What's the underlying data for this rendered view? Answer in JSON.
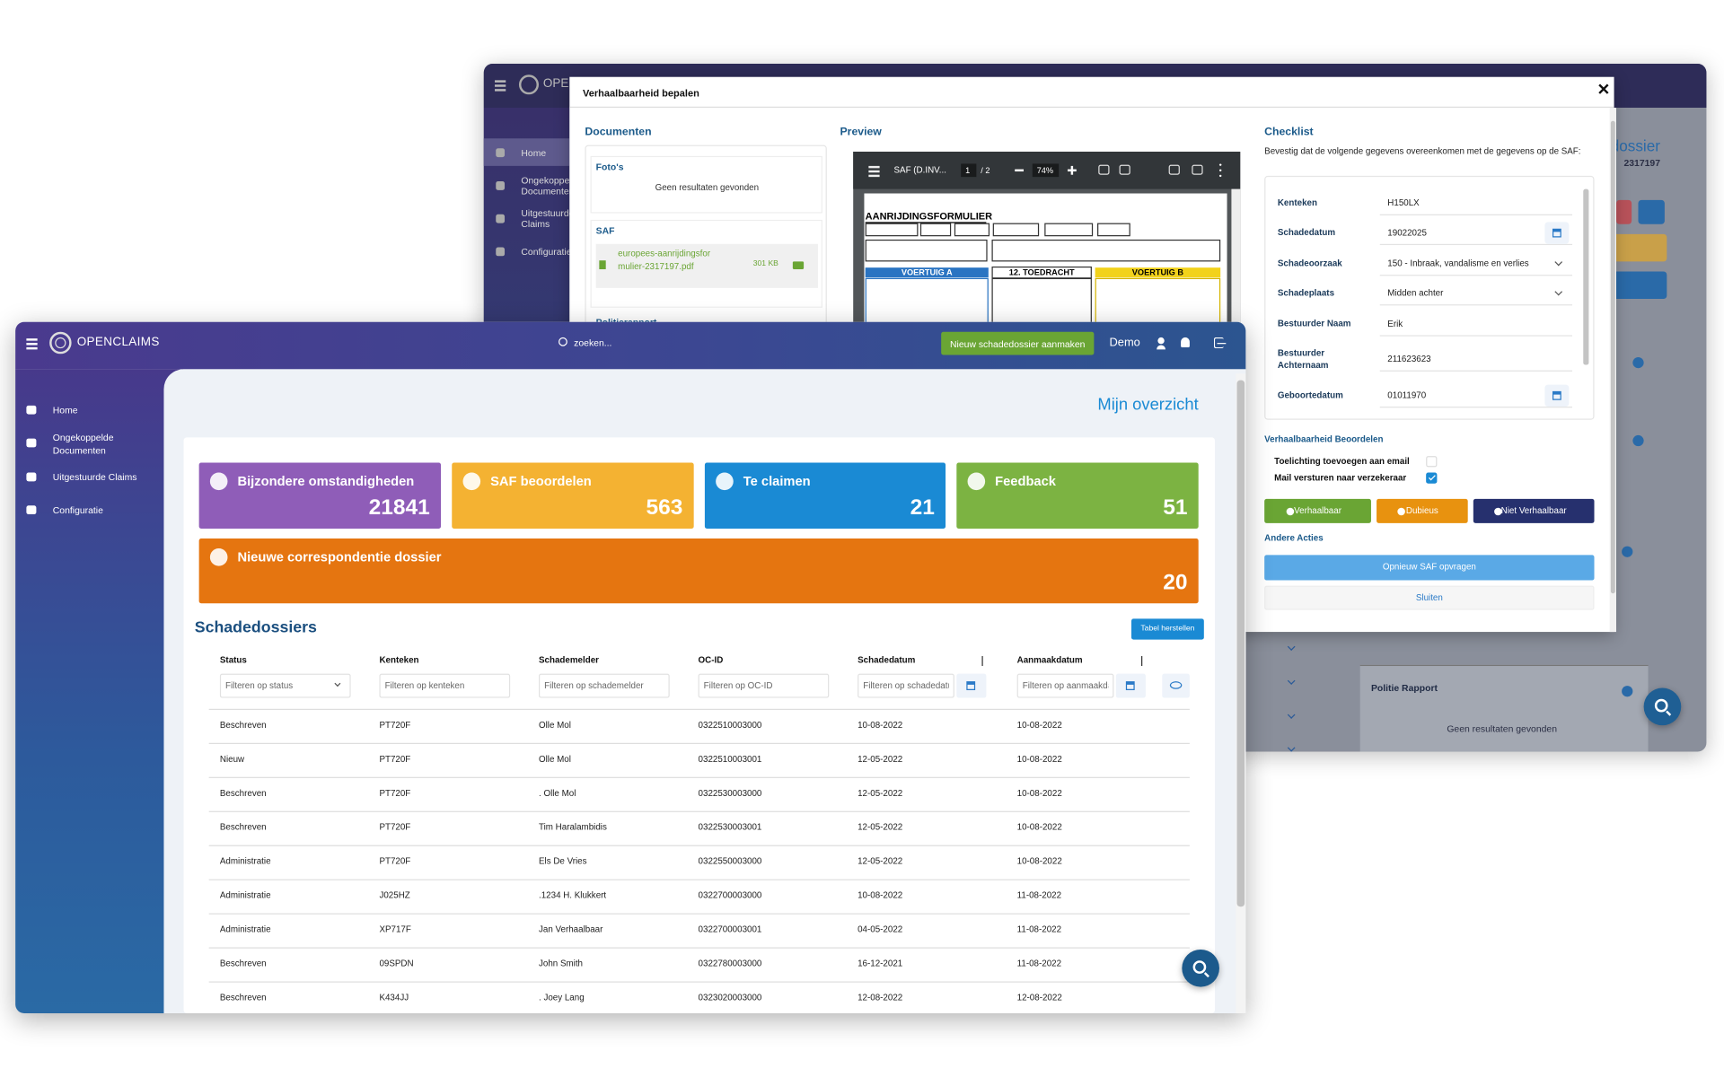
{
  "back_window": {
    "brand": "OPENCLAIMS",
    "nav": [
      "Home",
      "Ongekoppelde Documenten",
      "Uitgestuurde Claims",
      "Configuratie"
    ],
    "page_title": "Schadedossier",
    "dossier_number": "2317197",
    "section_title": "Politie Rapport",
    "empty_text": "Geen resultaten gevonden"
  },
  "modal": {
    "title": "Verhaalbaarheid bepalen",
    "documents": {
      "title": "Documenten",
      "photos_title": "Foto's",
      "photos_empty": "Geen resultaten gevonden",
      "saf_title": "SAF",
      "file_name": "europees-aanrijdingsformulier-2317197.pdf",
      "file_size": "301 KB",
      "police_title": "Politierapport"
    },
    "preview": {
      "title": "Preview",
      "file_label": "SAF (D.INV...",
      "page": "1",
      "page_total": "/ 2",
      "zoom": "74%",
      "form_title": "AANRIJDINGSFORMULIER",
      "vehicle_a": "VOERTUIG A",
      "circumstances": "12. TOEDRACHT",
      "vehicle_b": "VOERTUIG B"
    },
    "checklist": {
      "title": "Checklist",
      "description": "Bevestig dat de volgende gegevens overeenkomen met de gegevens op de SAF:",
      "fields": [
        {
          "label": "Kenteken",
          "value": "H150LX",
          "control": "text"
        },
        {
          "label": "Schadedatum",
          "value": "19022025",
          "control": "date"
        },
        {
          "label": "Schadeoorzaak",
          "value": "150 - Inbraak, vandalisme en verlies",
          "control": "select"
        },
        {
          "label": "Schadeplaats",
          "value": "Midden achter",
          "control": "select"
        },
        {
          "label": "Bestuurder Naam",
          "value": "Erik",
          "control": "text"
        },
        {
          "label": "Bestuurder Achternaam",
          "value": "211623623",
          "control": "text"
        },
        {
          "label": "Geboortedatum",
          "value": "01011970",
          "control": "date"
        }
      ]
    },
    "assessment": {
      "title": "Verhaalbaarheid Beoordelen",
      "options": [
        {
          "label": "Toelichting toevoegen aan email",
          "checked": false
        },
        {
          "label": "Mail versturen naar verzekeraar",
          "checked": true
        }
      ],
      "buttons": [
        {
          "label": "Verhaalbaar",
          "color": "#6aa534"
        },
        {
          "label": "Dubieus",
          "color": "#e8920f"
        },
        {
          "label": "Niet Verhaalbaar",
          "color": "#26306e"
        }
      ]
    },
    "other_actions": {
      "title": "Andere Acties",
      "request_again": "Opnieuw SAF opvragen",
      "close": "Sluiten"
    }
  },
  "front_window": {
    "brand": "OPENCLAIMS",
    "search_placeholder": "zoeken...",
    "new_button": "Nieuw schadedossier aanmaken",
    "user": "Demo",
    "nav": [
      "Home",
      "Ongekoppelde Documenten",
      "Uitgestuurde Claims",
      "Configuratie"
    ],
    "heading": "Mijn overzicht",
    "cards": [
      {
        "title": "Bijzondere omstandigheden",
        "count": 21841,
        "color": "#8f5db8"
      },
      {
        "title": "SAF beoordelen",
        "count": 563,
        "color": "#f4b232"
      },
      {
        "title": "Te claimen",
        "count": 21,
        "color": "#1a8ad4"
      },
      {
        "title": "Feedback",
        "count": 51,
        "color": "#7cb342"
      },
      {
        "title": "Nieuwe correspondentie dossier",
        "count": 20,
        "color": "#e57510"
      }
    ],
    "table": {
      "title": "Schadedossiers",
      "reset_button": "Tabel herstellen",
      "columns": [
        {
          "name": "Status",
          "filter": "Filteren op status",
          "filter_type": "select",
          "sortable": false
        },
        {
          "name": "Kenteken",
          "filter": "Filteren op kenteken",
          "filter_type": "text",
          "sortable": false
        },
        {
          "name": "Schademelder",
          "filter": "Filteren op schademelder",
          "filter_type": "text",
          "sortable": false
        },
        {
          "name": "OC-ID",
          "filter": "Filteren op OC-ID",
          "filter_type": "text",
          "sortable": false
        },
        {
          "name": "Schadedatum",
          "filter": "Filteren op schadedatum",
          "filter_type": "date",
          "sortable": true
        },
        {
          "name": "Aanmaakdatum",
          "filter": "Filteren op aanmaakdatum",
          "filter_type": "date",
          "sortable": true
        }
      ],
      "rows": [
        [
          "Beschreven",
          "PT720F",
          "Olle Mol",
          "0322510003000",
          "10-08-2022",
          "10-08-2022"
        ],
        [
          "Nieuw",
          "PT720F",
          "Olle Mol",
          "0322510003001",
          "12-05-2022",
          "10-08-2022"
        ],
        [
          "Beschreven",
          "PT720F",
          ". Olle Mol",
          "0322530003000",
          "12-05-2022",
          "10-08-2022"
        ],
        [
          "Beschreven",
          "PT720F",
          "Tim Haralambidis",
          "0322530003001",
          "12-05-2022",
          "10-08-2022"
        ],
        [
          "Administratie",
          "PT720F",
          "Els De Vries",
          "0322550003000",
          "12-05-2022",
          "10-08-2022"
        ],
        [
          "Administratie",
          "J025HZ",
          ".1234 H. Klukkert",
          "0322700003000",
          "10-08-2022",
          "11-08-2022"
        ],
        [
          "Administratie",
          "XP717F",
          "Jan Verhaalbaar",
          "0322700003001",
          "04-05-2022",
          "11-08-2022"
        ],
        [
          "Beschreven",
          "09SPDN",
          "John Smith",
          "0322780003000",
          "16-12-2021",
          "11-08-2022"
        ],
        [
          "Beschreven",
          "K434JJ",
          ". Joey Lang",
          "0323020003000",
          "12-08-2022",
          "12-08-2022"
        ]
      ]
    }
  }
}
